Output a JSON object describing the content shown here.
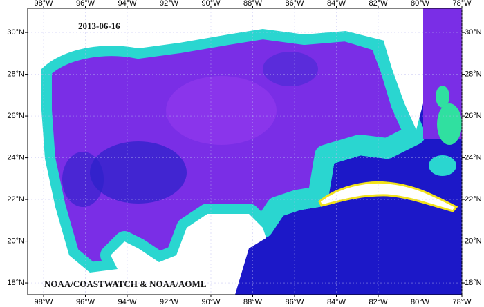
{
  "map": {
    "date": "2013-06-16",
    "credit": "NOAA/COASTWATCH & NOAA/AOML",
    "lon_range": [
      -98.76,
      -78
    ],
    "lat_range": [
      17.44,
      31.16
    ],
    "lon_ticks": [
      {
        "value": -98,
        "label": "98°W"
      },
      {
        "value": -96,
        "label": "96°W"
      },
      {
        "value": -94,
        "label": "94°W"
      },
      {
        "value": -92,
        "label": "92°W"
      },
      {
        "value": -90,
        "label": "90°W"
      },
      {
        "value": -88,
        "label": "88°W"
      },
      {
        "value": -86,
        "label": "86°W"
      },
      {
        "value": -84,
        "label": "84°W"
      },
      {
        "value": -82,
        "label": "82°W"
      },
      {
        "value": -80,
        "label": "80°W"
      },
      {
        "value": -78,
        "label": "78°W"
      }
    ],
    "lat_ticks": [
      {
        "value": 30,
        "label": "30°N"
      },
      {
        "value": 28,
        "label": "28°N"
      },
      {
        "value": 26,
        "label": "26°N"
      },
      {
        "value": 24,
        "label": "24°N"
      },
      {
        "value": 22,
        "label": "22°N"
      },
      {
        "value": 20,
        "label": "20°N"
      },
      {
        "value": 18,
        "label": "18°N"
      }
    ]
  }
}
